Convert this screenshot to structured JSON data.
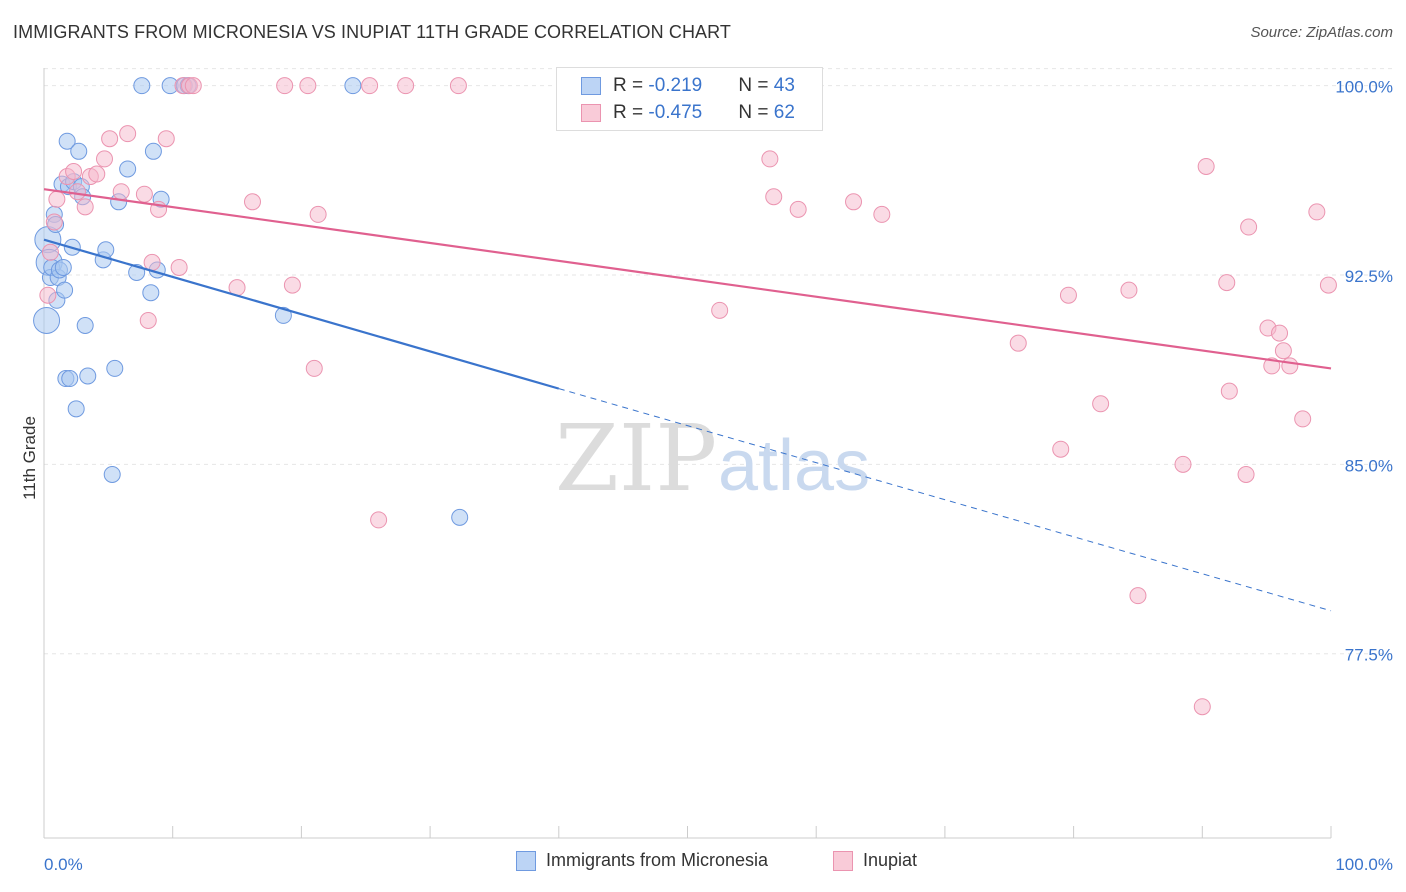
{
  "title": "IMMIGRANTS FROM MICRONESIA VS INUPIAT 11TH GRADE CORRELATION CHART",
  "source": "Source: ZipAtlas.com",
  "colors": {
    "blue": "#3a74cc",
    "blue_fill": "#a9c8f0",
    "pink": "#e0608f",
    "pink_fill": "#f5b8cb",
    "axis_text": "#3a74cc"
  },
  "legend": {
    "r_label": "R = ",
    "n_label": "N = ",
    "series1": {
      "r": "-0.219",
      "n": "43"
    },
    "series2": {
      "r": "-0.475",
      "n": "62"
    }
  },
  "chart_data": {
    "type": "scatter",
    "ylabel": "11th Grade",
    "x_tick_labels": [
      "0.0%",
      "100.0%"
    ],
    "y_tick_labels": [
      "100.0%",
      "92.5%",
      "85.0%",
      "77.5%"
    ],
    "y_ticks": [
      100.0,
      92.5,
      85.0,
      77.5
    ],
    "xlim": [
      0,
      100
    ],
    "ylim": [
      70.2,
      100.7
    ],
    "grid": true,
    "watermark": "ZIPatlas",
    "series": [
      {
        "name": "Immigrants from Micronesia",
        "color": "#3a74cc",
        "trend": {
          "x0": 0,
          "y0": 93.9,
          "x1": 40,
          "y1": 88.0,
          "dashed_to_x": 100,
          "dashed_to_y": 79.2
        },
        "points": [
          [
            0.2,
            90.7
          ],
          [
            0.3,
            93.9
          ],
          [
            0.4,
            93.0
          ],
          [
            0.5,
            92.4
          ],
          [
            0.6,
            92.8
          ],
          [
            0.8,
            94.9
          ],
          [
            0.9,
            94.5
          ],
          [
            1.0,
            91.5
          ],
          [
            1.1,
            92.4
          ],
          [
            1.2,
            92.7
          ],
          [
            1.4,
            96.1
          ],
          [
            1.5,
            92.8
          ],
          [
            1.6,
            91.9
          ],
          [
            1.7,
            88.4
          ],
          [
            1.8,
            97.8
          ],
          [
            1.9,
            96.0
          ],
          [
            2.0,
            88.4
          ],
          [
            2.2,
            93.6
          ],
          [
            2.3,
            96.2
          ],
          [
            2.5,
            87.2
          ],
          [
            2.7,
            97.4
          ],
          [
            2.9,
            96.0
          ],
          [
            3.0,
            95.6
          ],
          [
            3.2,
            90.5
          ],
          [
            3.4,
            88.5
          ],
          [
            4.6,
            93.1
          ],
          [
            4.8,
            93.5
          ],
          [
            5.3,
            84.6
          ],
          [
            5.5,
            88.8
          ],
          [
            5.8,
            95.4
          ],
          [
            6.5,
            96.7
          ],
          [
            7.2,
            92.6
          ],
          [
            7.6,
            100.0
          ],
          [
            8.3,
            91.8
          ],
          [
            8.5,
            97.4
          ],
          [
            8.8,
            92.7
          ],
          [
            9.1,
            95.5
          ],
          [
            9.8,
            100.0
          ],
          [
            10.9,
            100.0
          ],
          [
            11.2,
            100.0
          ],
          [
            18.6,
            90.9
          ],
          [
            24.0,
            100.0
          ],
          [
            32.3,
            82.9
          ]
        ]
      },
      {
        "name": "Inupiat",
        "color": "#e0608f",
        "trend": {
          "x0": 0,
          "y0": 95.9,
          "x1": 100,
          "y1": 88.8
        },
        "points": [
          [
            0.3,
            91.7
          ],
          [
            0.5,
            93.4
          ],
          [
            0.8,
            94.6
          ],
          [
            1.0,
            95.5
          ],
          [
            1.8,
            96.4
          ],
          [
            2.3,
            96.6
          ],
          [
            2.6,
            95.8
          ],
          [
            3.2,
            95.2
          ],
          [
            3.6,
            96.4
          ],
          [
            4.1,
            96.5
          ],
          [
            4.7,
            97.1
          ],
          [
            5.1,
            97.9
          ],
          [
            6.0,
            95.8
          ],
          [
            6.5,
            98.1
          ],
          [
            7.8,
            95.7
          ],
          [
            8.1,
            90.7
          ],
          [
            8.4,
            93.0
          ],
          [
            8.9,
            95.1
          ],
          [
            9.5,
            97.9
          ],
          [
            10.5,
            92.8
          ],
          [
            10.8,
            100.0
          ],
          [
            11.3,
            100.0
          ],
          [
            11.6,
            100.0
          ],
          [
            15.0,
            92.0
          ],
          [
            16.2,
            95.4
          ],
          [
            18.7,
            100.0
          ],
          [
            19.3,
            92.1
          ],
          [
            20.5,
            100.0
          ],
          [
            21.0,
            88.8
          ],
          [
            21.3,
            94.9
          ],
          [
            25.3,
            100.0
          ],
          [
            26.0,
            82.8
          ],
          [
            28.1,
            100.0
          ],
          [
            32.2,
            100.0
          ],
          [
            47.0,
            100.0
          ],
          [
            52.5,
            91.1
          ],
          [
            56.4,
            97.1
          ],
          [
            56.7,
            95.6
          ],
          [
            58.6,
            95.1
          ],
          [
            62.9,
            95.4
          ],
          [
            65.1,
            94.9
          ],
          [
            75.7,
            89.8
          ],
          [
            79.0,
            85.6
          ],
          [
            79.6,
            91.7
          ],
          [
            82.1,
            87.4
          ],
          [
            84.3,
            91.9
          ],
          [
            85.0,
            79.8
          ],
          [
            88.5,
            85.0
          ],
          [
            90.0,
            75.4
          ],
          [
            90.3,
            96.8
          ],
          [
            91.9,
            92.2
          ],
          [
            92.1,
            87.9
          ],
          [
            93.4,
            84.6
          ],
          [
            93.6,
            94.4
          ],
          [
            95.1,
            90.4
          ],
          [
            95.4,
            88.9
          ],
          [
            96.0,
            90.2
          ],
          [
            96.3,
            89.5
          ],
          [
            96.8,
            88.9
          ],
          [
            97.8,
            86.8
          ],
          [
            98.9,
            95.0
          ],
          [
            99.8,
            92.1
          ]
        ]
      }
    ]
  }
}
